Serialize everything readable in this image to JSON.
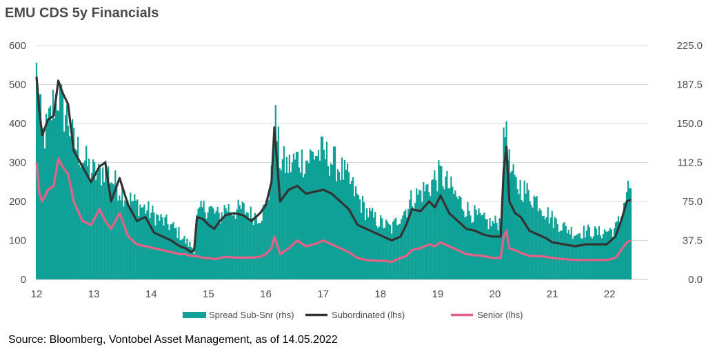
{
  "title": "EMU CDS 5y Financials",
  "source": "Source: Bloomberg, Vontobel Asset Management, as of 14.05.2022",
  "chart_data": {
    "type": "line",
    "x_start": 2012.0,
    "x_end": 2022.37,
    "x_tick_values": [
      2012,
      2013,
      2014,
      2015,
      2016,
      2017,
      2018,
      2019,
      2020,
      2021,
      2022
    ],
    "x_tick_labels": [
      "12",
      "13",
      "14",
      "15",
      "16",
      "17",
      "18",
      "19",
      "20",
      "21",
      "22"
    ],
    "y_left": {
      "ylim": [
        0,
        600
      ],
      "ticks": [
        "0",
        "100",
        "200",
        "300",
        "400",
        "500",
        "600"
      ]
    },
    "y_right": {
      "ylim": [
        0,
        225
      ],
      "ticks": [
        "0.0",
        "37.5",
        "75.0",
        "112.5",
        "150.0",
        "187.5",
        "225.0"
      ]
    },
    "grid": true,
    "legend_position": "bottom",
    "series": [
      {
        "name": "Spread Sub-Snr (rhs)",
        "axis": "right",
        "style": "area",
        "color": "#0fa197",
        "x": [
          2012.0,
          2012.05,
          2012.1,
          2012.2,
          2012.3,
          2012.38,
          2012.45,
          2012.55,
          2012.65,
          2012.8,
          2012.95,
          2013.1,
          2013.2,
          2013.3,
          2013.45,
          2013.6,
          2013.75,
          2013.9,
          2014.05,
          2014.2,
          2014.35,
          2014.5,
          2014.6,
          2014.7,
          2014.75,
          2014.8,
          2014.9,
          2015.0,
          2015.1,
          2015.2,
          2015.3,
          2015.45,
          2015.6,
          2015.75,
          2015.9,
          2016.0,
          2016.1,
          2016.15,
          2016.25,
          2016.4,
          2016.55,
          2016.7,
          2016.85,
          2017.0,
          2017.15,
          2017.3,
          2017.45,
          2017.6,
          2017.75,
          2017.9,
          2018.05,
          2018.2,
          2018.35,
          2018.45,
          2018.55,
          2018.7,
          2018.85,
          2018.95,
          2019.05,
          2019.2,
          2019.35,
          2019.5,
          2019.65,
          2019.8,
          2019.95,
          2020.1,
          2020.15,
          2020.2,
          2020.25,
          2020.35,
          2020.45,
          2020.6,
          2020.75,
          2020.9,
          2021.0,
          2021.2,
          2021.4,
          2021.6,
          2021.8,
          2021.95,
          2022.1,
          2022.2,
          2022.3,
          2022.37
        ],
        "values": [
          205,
          175,
          140,
          150,
          175,
          185,
          170,
          160,
          135,
          122,
          108,
          103,
          112,
          100,
          90,
          80,
          75,
          70,
          64,
          58,
          53,
          45,
          38,
          33,
          30,
          62,
          70,
          72,
          66,
          62,
          72,
          68,
          70,
          64,
          63,
          72,
          100,
          165,
          118,
          112,
          120,
          118,
          125,
          125,
          118,
          110,
          98,
          82,
          68,
          60,
          55,
          50,
          64,
          70,
          80,
          86,
          92,
          100,
          104,
          92,
          80,
          70,
          64,
          58,
          55,
          58,
          130,
          160,
          112,
          94,
          92,
          84,
          78,
          66,
          60,
          52,
          46,
          48,
          46,
          48,
          50,
          62,
          88,
          93
        ]
      },
      {
        "name": "Subordinated (lhs)",
        "axis": "left",
        "style": "line",
        "color": "#333333",
        "x": [
          2012.0,
          2012.05,
          2012.1,
          2012.2,
          2012.3,
          2012.38,
          2012.45,
          2012.55,
          2012.65,
          2012.8,
          2012.95,
          2013.1,
          2013.2,
          2013.3,
          2013.45,
          2013.6,
          2013.75,
          2013.9,
          2014.05,
          2014.2,
          2014.35,
          2014.5,
          2014.6,
          2014.7,
          2014.75,
          2014.8,
          2014.9,
          2015.0,
          2015.1,
          2015.2,
          2015.3,
          2015.45,
          2015.6,
          2015.75,
          2015.9,
          2016.0,
          2016.1,
          2016.15,
          2016.25,
          2016.4,
          2016.55,
          2016.7,
          2016.85,
          2017.0,
          2017.15,
          2017.3,
          2017.45,
          2017.6,
          2017.75,
          2017.9,
          2018.05,
          2018.2,
          2018.35,
          2018.45,
          2018.55,
          2018.7,
          2018.85,
          2018.95,
          2019.05,
          2019.2,
          2019.35,
          2019.5,
          2019.65,
          2019.8,
          2019.95,
          2020.1,
          2020.15,
          2020.2,
          2020.25,
          2020.35,
          2020.45,
          2020.6,
          2020.75,
          2020.9,
          2021.0,
          2021.2,
          2021.4,
          2021.6,
          2021.8,
          2021.95,
          2022.1,
          2022.2,
          2022.3,
          2022.37
        ],
        "values": [
          520,
          430,
          370,
          410,
          420,
          510,
          480,
          450,
          330,
          290,
          250,
          290,
          300,
          200,
          260,
          190,
          150,
          160,
          120,
          110,
          100,
          85,
          80,
          70,
          75,
          160,
          155,
          140,
          130,
          150,
          165,
          170,
          165,
          150,
          170,
          190,
          250,
          390,
          200,
          230,
          240,
          220,
          225,
          230,
          220,
          200,
          180,
          140,
          130,
          120,
          110,
          100,
          110,
          140,
          180,
          175,
          200,
          185,
          215,
          170,
          150,
          130,
          125,
          115,
          110,
          110,
          280,
          340,
          200,
          170,
          160,
          125,
          115,
          105,
          95,
          90,
          85,
          90,
          90,
          90,
          110,
          150,
          200,
          205
        ]
      },
      {
        "name": "Senior (lhs)",
        "axis": "left",
        "style": "line",
        "color": "#e86086",
        "x": [
          2012.0,
          2012.05,
          2012.1,
          2012.2,
          2012.3,
          2012.38,
          2012.45,
          2012.55,
          2012.65,
          2012.8,
          2012.95,
          2013.1,
          2013.2,
          2013.3,
          2013.45,
          2013.6,
          2013.75,
          2013.9,
          2014.05,
          2014.2,
          2014.35,
          2014.5,
          2014.6,
          2014.7,
          2014.75,
          2014.8,
          2014.9,
          2015.0,
          2015.1,
          2015.2,
          2015.3,
          2015.45,
          2015.6,
          2015.75,
          2015.9,
          2016.0,
          2016.1,
          2016.15,
          2016.25,
          2016.4,
          2016.55,
          2016.7,
          2016.85,
          2017.0,
          2017.15,
          2017.3,
          2017.45,
          2017.6,
          2017.75,
          2017.9,
          2018.05,
          2018.2,
          2018.35,
          2018.45,
          2018.55,
          2018.7,
          2018.85,
          2018.95,
          2019.05,
          2019.2,
          2019.35,
          2019.5,
          2019.65,
          2019.8,
          2019.95,
          2020.1,
          2020.15,
          2020.2,
          2020.25,
          2020.35,
          2020.45,
          2020.6,
          2020.75,
          2020.9,
          2021.0,
          2021.2,
          2021.4,
          2021.6,
          2021.8,
          2021.95,
          2022.1,
          2022.2,
          2022.3,
          2022.37
        ],
        "values": [
          300,
          220,
          200,
          230,
          240,
          310,
          290,
          270,
          200,
          150,
          140,
          180,
          150,
          130,
          170,
          110,
          90,
          85,
          80,
          75,
          70,
          65,
          65,
          60,
          60,
          60,
          55,
          55,
          52,
          55,
          58,
          56,
          56,
          56,
          58,
          65,
          80,
          110,
          65,
          80,
          100,
          85,
          90,
          100,
          90,
          80,
          70,
          55,
          50,
          48,
          48,
          45,
          55,
          60,
          75,
          80,
          90,
          85,
          95,
          85,
          75,
          65,
          62,
          60,
          55,
          55,
          110,
          125,
          80,
          75,
          68,
          60,
          60,
          58,
          55,
          52,
          50,
          50,
          50,
          50,
          55,
          75,
          95,
          100
        ]
      }
    ]
  }
}
